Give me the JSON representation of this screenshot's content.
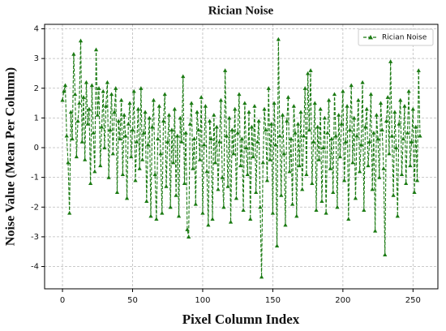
{
  "chart_data": {
    "type": "line",
    "title": "Rician Noise",
    "xlabel": "Pixel Column Index",
    "ylabel": "Noise Value (Mean Per Column)",
    "x": [
      0,
      1,
      2,
      3,
      4,
      5,
      6,
      7,
      8,
      9,
      10,
      11,
      12,
      13,
      14,
      15,
      16,
      17,
      18,
      19,
      20,
      21,
      22,
      23,
      24,
      25,
      26,
      27,
      28,
      29,
      30,
      31,
      32,
      33,
      34,
      35,
      36,
      37,
      38,
      39,
      40,
      41,
      42,
      43,
      44,
      45,
      46,
      47,
      48,
      49,
      50,
      51,
      52,
      53,
      54,
      55,
      56,
      57,
      58,
      59,
      60,
      61,
      62,
      63,
      64,
      65,
      66,
      67,
      68,
      69,
      70,
      71,
      72,
      73,
      74,
      75,
      76,
      77,
      78,
      79,
      80,
      81,
      82,
      83,
      84,
      85,
      86,
      87,
      88,
      89,
      90,
      91,
      92,
      93,
      94,
      95,
      96,
      97,
      98,
      99,
      100,
      101,
      102,
      103,
      104,
      105,
      106,
      107,
      108,
      109,
      110,
      111,
      112,
      113,
      114,
      115,
      116,
      117,
      118,
      119,
      120,
      121,
      122,
      123,
      124,
      125,
      126,
      127,
      128,
      129,
      130,
      131,
      132,
      133,
      134,
      135,
      136,
      137,
      138,
      139,
      140,
      141,
      142,
      143,
      144,
      145,
      146,
      147,
      148,
      149,
      150,
      151,
      152,
      153,
      154,
      155,
      156,
      157,
      158,
      159,
      160,
      161,
      162,
      163,
      164,
      165,
      166,
      167,
      168,
      169,
      170,
      171,
      172,
      173,
      174,
      175,
      176,
      177,
      178,
      179,
      180,
      181,
      182,
      183,
      184,
      185,
      186,
      187,
      188,
      189,
      190,
      191,
      192,
      193,
      194,
      195,
      196,
      197,
      198,
      199,
      200,
      201,
      202,
      203,
      204,
      205,
      206,
      207,
      208,
      209,
      210,
      211,
      212,
      213,
      214,
      215,
      216,
      217,
      218,
      219,
      220,
      221,
      222,
      223,
      224,
      225,
      226,
      227,
      228,
      229,
      230,
      231,
      232,
      233,
      234,
      235,
      236,
      237,
      238,
      239,
      240,
      241,
      242,
      243,
      244,
      245,
      246,
      247,
      248,
      249,
      250,
      251,
      252,
      253,
      254,
      255
    ],
    "series": [
      {
        "name": "Rician Noise",
        "color": "#1a7a12",
        "values": [
          1.6,
          1.9,
          2.1,
          0.4,
          -0.5,
          -2.2,
          1.2,
          0.3,
          3.15,
          1.8,
          -0.3,
          0.9,
          1.5,
          3.6,
          0.2,
          1.7,
          -0.4,
          2.2,
          0.8,
          1.3,
          -1.2,
          2.1,
          0.5,
          -0.8,
          3.3,
          1.1,
          2.0,
          -0.6,
          0.7,
          1.9,
          0.0,
          1.4,
          2.2,
          -1.0,
          0.6,
          1.8,
          -0.2,
          1.2,
          2.0,
          -1.5,
          0.9,
          0.3,
          1.6,
          -0.9,
          1.1,
          0.4,
          -1.7,
          0.8,
          1.5,
          -0.3,
          0.6,
          1.9,
          -1.1,
          0.2,
          1.3,
          -0.7,
          2.0,
          -0.4,
          0.5,
          1.2,
          -1.8,
          0.1,
          1.0,
          -2.3,
          0.7,
          1.6,
          -0.9,
          -2.4,
          0.3,
          1.4,
          -0.2,
          -2.2,
          0.9,
          1.8,
          -1.3,
          0.2,
          1.1,
          -2.0,
          0.6,
          -0.5,
          1.3,
          -1.6,
          0.4,
          -2.3,
          1.0,
          0.2,
          2.4,
          -1.2,
          0.5,
          -2.75,
          -3.0,
          0.8,
          1.5,
          -0.7,
          0.3,
          -1.9,
          1.2,
          0.6,
          -0.4,
          1.7,
          -2.2,
          0.1,
          1.4,
          -0.8,
          -2.6,
          0.9,
          0.3,
          -2.4,
          1.1,
          -0.5,
          0.7,
          -1.4,
          0.2,
          1.6,
          -1.0,
          -2.0,
          2.6,
          0.4,
          -1.3,
          1.0,
          -2.5,
          0.6,
          -0.2,
          1.3,
          -1.7,
          0.5,
          1.8,
          -0.6,
          0.3,
          -2.1,
          1.5,
          0.0,
          -0.9,
          1.2,
          -2.4,
          0.7,
          -0.3,
          1.4,
          -1.5,
          0.2,
          0.9,
          -2.0,
          -4.35,
          -0.5,
          1.3,
          0.6,
          -1.1,
          2.0,
          -0.4,
          0.8,
          -2.2,
          1.5,
          0.1,
          -3.3,
          3.65,
          0.4,
          -1.6,
          1.1,
          -0.2,
          -2.6,
          0.9,
          1.7,
          -0.8,
          0.3,
          -1.9,
          1.4,
          0.5,
          -2.3,
          0.8,
          -0.6,
          1.2,
          -1.4,
          0.4,
          2.0,
          -0.9,
          2.5,
          0.6,
          2.6,
          -1.2,
          0.2,
          1.5,
          -2.1,
          0.7,
          -0.4,
          1.3,
          -1.8,
          0.0,
          1.0,
          -2.2,
          0.5,
          1.6,
          -0.7,
          0.3,
          -1.5,
          1.8,
          0.4,
          -2.0,
          1.1,
          -0.3,
          0.8,
          1.9,
          -1.1,
          0.2,
          1.4,
          -2.4,
          0.6,
          2.1,
          -0.5,
          1.0,
          -1.7,
          0.4,
          1.6,
          -0.8,
          0.1,
          2.2,
          -2.1,
          0.7,
          1.3,
          -0.6,
          0.2,
          1.8,
          -1.4,
          0.5,
          -2.8,
          1.1,
          0.3,
          -1.0,
          1.5,
          0.6,
          -0.7,
          -3.6,
          0.9,
          1.7,
          -0.2,
          2.9,
          0.4,
          -1.6,
          1.2,
          0.0,
          -2.3,
          0.8,
          1.6,
          -0.9,
          0.3,
          1.4,
          -1.2,
          0.5,
          1.9,
          -0.6,
          0.2,
          1.3,
          -1.5,
          0.7,
          -1.1,
          2.6,
          0.4
        ]
      }
    ],
    "xlim": [
      -12.75,
      267.75
    ],
    "ylim": [
      -4.75,
      4.15
    ],
    "xticks": [
      0,
      50,
      100,
      150,
      200,
      250
    ],
    "yticks": [
      -4,
      -3,
      -2,
      -1,
      0,
      1,
      2,
      3,
      4
    ],
    "grid": true,
    "legend": "upper right",
    "line_style": "dashed",
    "marker": "triangle"
  }
}
